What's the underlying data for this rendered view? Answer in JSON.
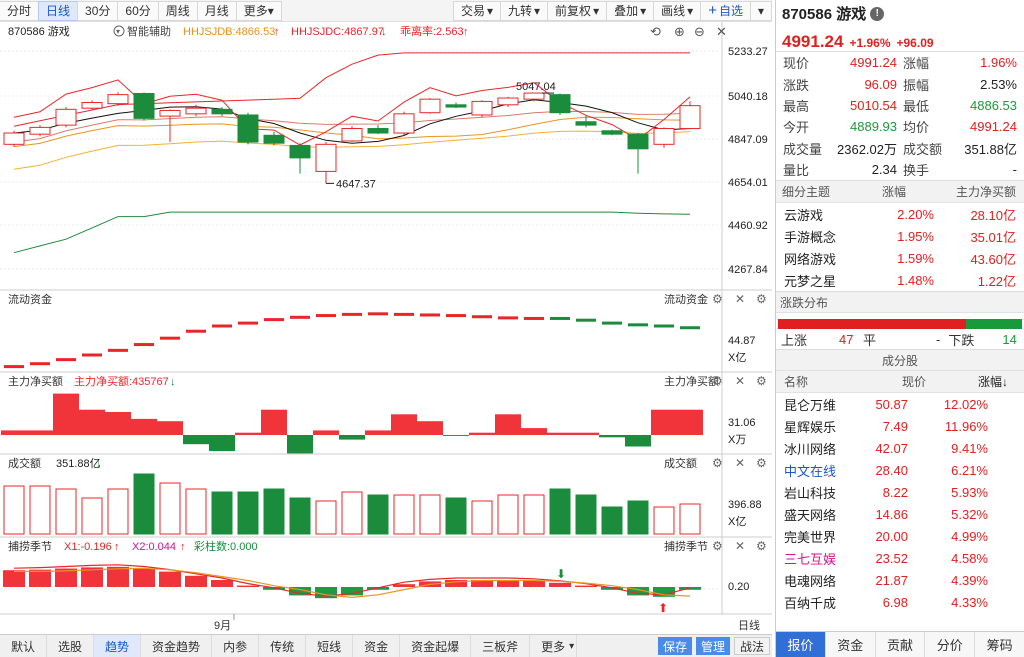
{
  "toolbar": {
    "periods": [
      "分时",
      "日线",
      "30分",
      "60分",
      "周线",
      "月线"
    ],
    "active": "日线",
    "more": "更多",
    "right": [
      "交易",
      "九转",
      "前复权",
      "叠加",
      "画线"
    ],
    "add_watch": "自选"
  },
  "chart": {
    "title": "870586 游戏",
    "smart_assist": "智能辅助",
    "hhjsjdb": "HHJSJDB:4866.53",
    "hhjsjdc": "HHJSJDC:4867.97",
    "deviation": "乖离率:2.563",
    "y_ticks": [
      "5233.27",
      "5040.18",
      "4847.09",
      "4654.01",
      "4460.92",
      "4267.84"
    ],
    "high_label": "5047.04",
    "low_label": "4647.37",
    "x_month": "9月",
    "x_period": "日线"
  },
  "panels": {
    "flow": {
      "title": "流动资金",
      "right_title": "流动资金",
      "value": "44.87",
      "unit": "X亿"
    },
    "main_net": {
      "title": "主力净买额",
      "value_label": "主力净买额:435767",
      "right_title": "主力净买额",
      "value": "31.06",
      "unit": "X万"
    },
    "volume": {
      "title": "成交额",
      "value_label": "351.88亿",
      "right_title": "成交额",
      "value": "396.88",
      "unit": "X亿"
    },
    "season": {
      "title": "捕捞季节",
      "x1": "X1:-0.196",
      "x2": "X2:0.044",
      "bars": "彩柱数:0.000",
      "right_title": "捕捞季节",
      "value": "0.20"
    }
  },
  "bottom_tabs": [
    "默认",
    "选股",
    "趋势",
    "资金趋势",
    "内参",
    "传统",
    "短线",
    "资金",
    "资金起爆",
    "三板斧",
    "更多"
  ],
  "bottom_active": "趋势",
  "bottom_buttons": [
    "保存",
    "管理",
    "战法"
  ],
  "right_panel": {
    "code": "870586 游戏",
    "price": "4991.24",
    "change_pct": "+1.96%",
    "change": "+96.09",
    "quote": [
      {
        "l": "现价",
        "v": "4991.24",
        "c": "red"
      },
      {
        "l": "涨幅",
        "v": "1.96%",
        "c": "red"
      },
      {
        "l": "涨跌",
        "v": "96.09",
        "c": "red"
      },
      {
        "l": "振幅",
        "v": "2.53%",
        "c": "blk"
      },
      {
        "l": "最高",
        "v": "5010.54",
        "c": "red"
      },
      {
        "l": "最低",
        "v": "4886.53",
        "c": "green"
      },
      {
        "l": "今开",
        "v": "4889.93",
        "c": "green"
      },
      {
        "l": "均价",
        "v": "4991.24",
        "c": "red"
      },
      {
        "l": "成交量",
        "v": "2362.02万",
        "c": "blk"
      },
      {
        "l": "成交额",
        "v": "351.88亿",
        "c": "blk"
      },
      {
        "l": "量比",
        "v": "2.34",
        "c": "blk"
      },
      {
        "l": "换手",
        "v": "-",
        "c": "blk"
      }
    ],
    "sub_head": [
      "细分主题",
      "涨幅",
      "主力净买额"
    ],
    "sub_rows": [
      {
        "name": "云游戏",
        "pct": "2.20%",
        "net": "28.10亿"
      },
      {
        "name": "手游概念",
        "pct": "1.95%",
        "net": "35.01亿"
      },
      {
        "name": "网络游戏",
        "pct": "1.59%",
        "net": "43.60亿"
      },
      {
        "name": "元梦之星",
        "pct": "1.48%",
        "net": "1.22亿"
      }
    ],
    "dist_title": "涨跌分布",
    "dist": {
      "up_label": "上涨",
      "up": "47",
      "flat_label": "平",
      "flat": "-",
      "down_label": "下跌",
      "down": "14"
    },
    "const_title": "成分股",
    "const_head": [
      "名称",
      "现价",
      "涨幅↓"
    ],
    "const_rows": [
      {
        "name": "昆仑万维",
        "price": "50.87",
        "pct": "12.02%",
        "nc": "blk"
      },
      {
        "name": "星辉娱乐",
        "price": "7.49",
        "pct": "11.96%",
        "nc": "blk"
      },
      {
        "name": "冰川网络",
        "price": "42.07",
        "pct": "9.41%",
        "nc": "blk"
      },
      {
        "name": "中文在线",
        "price": "28.40",
        "pct": "6.21%",
        "nc": "blue-t"
      },
      {
        "name": "岩山科技",
        "price": "8.22",
        "pct": "5.93%",
        "nc": "blk"
      },
      {
        "name": "盛天网络",
        "price": "14.86",
        "pct": "5.32%",
        "nc": "blk"
      },
      {
        "name": "完美世界",
        "price": "20.00",
        "pct": "4.99%",
        "nc": "blk"
      },
      {
        "name": "三七互娱",
        "price": "23.52",
        "pct": "4.58%",
        "nc": "pink"
      },
      {
        "name": "电魂网络",
        "price": "21.87",
        "pct": "4.39%",
        "nc": "blk"
      },
      {
        "name": "百纳千成",
        "price": "6.98",
        "pct": "4.33%",
        "nc": "blk"
      }
    ],
    "tabs": [
      "报价",
      "资金",
      "贡献",
      "分价",
      "筹码"
    ],
    "active_tab": "报价"
  },
  "candles": [
    {
      "o": 4820,
      "c": 4870,
      "h": 4880,
      "l": 4810
    },
    {
      "o": 4865,
      "c": 4895,
      "h": 4905,
      "l": 4855
    },
    {
      "o": 4905,
      "c": 4975,
      "h": 4985,
      "l": 4895
    },
    {
      "o": 4980,
      "c": 5005,
      "h": 5015,
      "l": 4970
    },
    {
      "o": 5000,
      "c": 5040,
      "h": 5050,
      "l": 4990
    },
    {
      "o": 5045,
      "c": 4935,
      "h": 5050,
      "l": 4925
    },
    {
      "o": 4945,
      "c": 4970,
      "h": 4975,
      "l": 4830
    },
    {
      "o": 4955,
      "c": 4980,
      "h": 4995,
      "l": 4945
    },
    {
      "o": 4975,
      "c": 4955,
      "h": 4985,
      "l": 4945
    },
    {
      "o": 4950,
      "c": 4830,
      "h": 4960,
      "l": 4820
    },
    {
      "o": 4860,
      "c": 4825,
      "h": 4875,
      "l": 4815
    },
    {
      "o": 4815,
      "c": 4760,
      "h": 4825,
      "l": 4690
    },
    {
      "o": 4700,
      "c": 4820,
      "h": 4830,
      "l": 4647
    },
    {
      "o": 4835,
      "c": 4890,
      "h": 4900,
      "l": 4830
    },
    {
      "o": 4890,
      "c": 4870,
      "h": 4905,
      "l": 4865
    },
    {
      "o": 4870,
      "c": 4955,
      "h": 4965,
      "l": 4860
    },
    {
      "o": 4960,
      "c": 5020,
      "h": 5025,
      "l": 4955
    },
    {
      "o": 4995,
      "c": 4985,
      "h": 5005,
      "l": 4980
    },
    {
      "o": 4950,
      "c": 5010,
      "h": 5015,
      "l": 4940
    },
    {
      "o": 4995,
      "c": 5025,
      "h": 5030,
      "l": 4985
    },
    {
      "o": 5020,
      "c": 5047,
      "h": 5047,
      "l": 5010
    },
    {
      "o": 5040,
      "c": 4960,
      "h": 5045,
      "l": 4950
    },
    {
      "o": 4920,
      "c": 4905,
      "h": 4950,
      "l": 4895
    },
    {
      "o": 4880,
      "c": 4865,
      "h": 4885,
      "l": 4860
    },
    {
      "o": 4865,
      "c": 4800,
      "h": 4870,
      "l": 4690
    },
    {
      "o": 4820,
      "c": 4890,
      "h": 4895,
      "l": 4805
    },
    {
      "o": 4889.93,
      "c": 4991.24,
      "h": 5010.54,
      "l": 4886.53
    }
  ],
  "flow_vals": [
    0.05,
    0.1,
    0.17,
    0.25,
    0.33,
    0.43,
    0.54,
    0.66,
    0.75,
    0.8,
    0.86,
    0.9,
    0.93,
    0.95,
    0.96,
    0.95,
    0.94,
    0.93,
    0.91,
    0.89,
    0.88,
    0.88,
    0.85,
    0.8,
    0.77,
    0.75,
    0.72
  ],
  "main_vals": [
    0.1,
    0.1,
    0.9,
    0.55,
    0.5,
    0.35,
    0.3,
    -0.2,
    -0.35,
    0.05,
    0.55,
    -0.4,
    0.1,
    -0.1,
    0.1,
    0.45,
    0.3,
    0.0,
    0.05,
    0.45,
    0.15,
    0.05,
    0.05,
    -0.05,
    -0.25,
    0.55,
    0.55
  ],
  "vol_vals": [
    0.8,
    0.8,
    0.75,
    0.6,
    0.75,
    1.0,
    0.85,
    0.75,
    0.7,
    0.7,
    0.75,
    0.6,
    0.55,
    0.7,
    0.65,
    0.65,
    0.65,
    0.6,
    0.55,
    0.65,
    0.65,
    0.75,
    0.65,
    0.45,
    0.55,
    0.45,
    0.5
  ],
  "season_vals": [
    0.6,
    0.62,
    0.66,
    0.7,
    0.72,
    0.66,
    0.55,
    0.4,
    0.25,
    0.05,
    -0.1,
    -0.3,
    -0.4,
    -0.3,
    -0.1,
    0.1,
    0.2,
    0.25,
    0.25,
    0.25,
    0.22,
    0.15,
    0.05,
    -0.1,
    -0.3,
    -0.35,
    -0.1
  ]
}
